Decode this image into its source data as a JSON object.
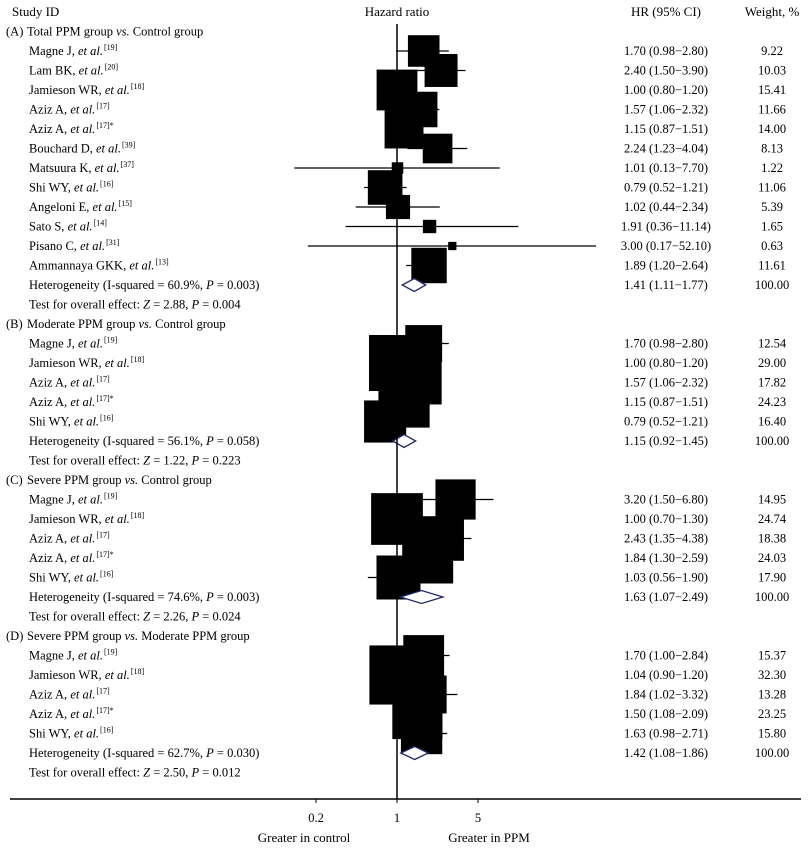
{
  "chart_data": {
    "type": "forest",
    "x_scale": "log",
    "headers": {
      "study": "Study ID",
      "effect": "Hazard ratio",
      "ci": "HR (95% CI)",
      "weight": "Weight, %"
    },
    "x_ticks": [
      {
        "value": 0.2,
        "label": "0.2"
      },
      {
        "value": 1,
        "label": "1"
      },
      {
        "value": 5,
        "label": "5"
      }
    ],
    "footer": {
      "left": "Greater in control",
      "right": "Greater in PPM"
    },
    "groups": [
      {
        "label": "(A)",
        "title": "Total PPM group vs. Control group",
        "studies": [
          {
            "name": "Magne J, et al.",
            "ref": "[19]",
            "hr": 1.7,
            "lo": 0.98,
            "hi": 2.8,
            "ci_text": "1.70 (0.98−2.80)",
            "weight": "9.22"
          },
          {
            "name": "Lam BK, et al.",
            "ref": "[20]",
            "hr": 2.4,
            "lo": 1.5,
            "hi": 3.9,
            "ci_text": "2.40 (1.50−3.90)",
            "weight": "10.03"
          },
          {
            "name": "Jamieson WR, et al.",
            "ref": "[18]",
            "hr": 1.0,
            "lo": 0.8,
            "hi": 1.2,
            "ci_text": "1.00 (0.80−1.20)",
            "weight": "15.41"
          },
          {
            "name": "Aziz A, et al.",
            "ref": "[17]",
            "hr": 1.57,
            "lo": 1.06,
            "hi": 2.32,
            "ci_text": "1.57 (1.06−2.32)",
            "weight": "11.66"
          },
          {
            "name": "Aziz A, et al.",
            "ref": "[17]*",
            "hr": 1.15,
            "lo": 0.87,
            "hi": 1.51,
            "ci_text": "1.15 (0.87−1.51)",
            "weight": "14.00"
          },
          {
            "name": "Bouchard D, et al.",
            "ref": "[39]",
            "hr": 2.24,
            "lo": 1.23,
            "hi": 4.04,
            "ci_text": "2.24 (1.23−4.04)",
            "weight": "8.13"
          },
          {
            "name": "Matsuura K, et al.",
            "ref": "[37]",
            "hr": 1.01,
            "lo": 0.13,
            "hi": 7.7,
            "ci_text": "1.01 (0.13−7.70)",
            "weight": "1.22"
          },
          {
            "name": "Shi WY, et al.",
            "ref": "[16]",
            "hr": 0.79,
            "lo": 0.52,
            "hi": 1.21,
            "ci_text": "0.79 (0.52−1.21)",
            "weight": "11.06"
          },
          {
            "name": "Angeloni E, et al.",
            "ref": "[15]",
            "hr": 1.02,
            "lo": 0.44,
            "hi": 2.34,
            "ci_text": "1.02 (0.44−2.34)",
            "weight": "5.39"
          },
          {
            "name": "Sato S, et al.",
            "ref": "[14]",
            "hr": 1.91,
            "lo": 0.36,
            "hi": 11.14,
            "ci_text": "1.91 (0.36−11.14)",
            "weight": "1.65"
          },
          {
            "name": "Pisano C, et al.",
            "ref": "[31]",
            "hr": 3.0,
            "lo": 0.17,
            "hi": 52.1,
            "ci_text": "3.00 (0.17−52.10)",
            "weight": "0.63"
          },
          {
            "name": "Ammannaya GKK, et al.",
            "ref": "[13]",
            "hr": 1.89,
            "lo": 1.2,
            "hi": 2.64,
            "ci_text": "1.89 (1.20−2.64)",
            "weight": "11.61"
          }
        ],
        "summary": {
          "label": "Heterogeneity (I-squared = 60.9%, P = 0.003)",
          "hr": 1.41,
          "lo": 1.11,
          "hi": 1.77,
          "ci_text": "1.41 (1.11−1.77)",
          "weight": "100.00"
        },
        "test": "Test for overall effect: Z = 2.88, P = 0.004"
      },
      {
        "label": "(B)",
        "title": "Moderate PPM group vs. Control group",
        "studies": [
          {
            "name": "Magne J, et al.",
            "ref": "[19]",
            "hr": 1.7,
            "lo": 0.98,
            "hi": 2.8,
            "ci_text": "1.70 (0.98−2.80)",
            "weight": "12.54"
          },
          {
            "name": "Jamieson WR, et al.",
            "ref": "[18]",
            "hr": 1.0,
            "lo": 0.8,
            "hi": 1.2,
            "ci_text": "1.00 (0.80−1.20)",
            "weight": "29.00"
          },
          {
            "name": "Aziz A, et al.",
            "ref": "[17]",
            "hr": 1.57,
            "lo": 1.06,
            "hi": 2.32,
            "ci_text": "1.57 (1.06−2.32)",
            "weight": "17.82"
          },
          {
            "name": "Aziz A, et al.",
            "ref": "[17]*",
            "hr": 1.15,
            "lo": 0.87,
            "hi": 1.51,
            "ci_text": "1.15 (0.87−1.51)",
            "weight": "24.23"
          },
          {
            "name": "Shi WY, et al.",
            "ref": "[16]",
            "hr": 0.79,
            "lo": 0.52,
            "hi": 1.21,
            "ci_text": "0.79 (0.52−1.21)",
            "weight": "16.40"
          }
        ],
        "summary": {
          "label": "Heterogeneity (I-squared = 56.1%, P = 0.058)",
          "hr": 1.15,
          "lo": 0.92,
          "hi": 1.45,
          "ci_text": "1.15 (0.92−1.45)",
          "weight": "100.00"
        },
        "test": "Test for overall effect: Z = 1.22, P = 0.223"
      },
      {
        "label": "(C)",
        "title": "Severe PPM group vs. Control group",
        "studies": [
          {
            "name": "Magne J, et al.",
            "ref": "[19]",
            "hr": 3.2,
            "lo": 1.5,
            "hi": 6.8,
            "ci_text": "3.20 (1.50−6.80)",
            "weight": "14.95"
          },
          {
            "name": "Jamieson WR, et al.",
            "ref": "[18]",
            "hr": 1.0,
            "lo": 0.7,
            "hi": 1.3,
            "ci_text": "1.00 (0.70−1.30)",
            "weight": "24.74"
          },
          {
            "name": "Aziz A, et al.",
            "ref": "[17]",
            "hr": 2.43,
            "lo": 1.35,
            "hi": 4.38,
            "ci_text": "2.43 (1.35−4.38)",
            "weight": "18.38"
          },
          {
            "name": "Aziz A, et al.",
            "ref": "[17]*",
            "hr": 1.84,
            "lo": 1.3,
            "hi": 2.59,
            "ci_text": "1.84 (1.30−2.59)",
            "weight": "24.03"
          },
          {
            "name": "Shi WY, et al.",
            "ref": "[16]",
            "hr": 1.03,
            "lo": 0.56,
            "hi": 1.9,
            "ci_text": "1.03 (0.56−1.90)",
            "weight": "17.90"
          }
        ],
        "summary": {
          "label": "Heterogeneity (I-squared = 74.6%, P = 0.003)",
          "hr": 1.63,
          "lo": 1.07,
          "hi": 2.49,
          "ci_text": "1.63 (1.07−2.49)",
          "weight": "100.00"
        },
        "test": "Test for overall effect: Z = 2.26, P = 0.024"
      },
      {
        "label": "(D)",
        "title": "Severe PPM group vs. Moderate PPM group",
        "studies": [
          {
            "name": "Magne J, et al.",
            "ref": "[19]",
            "hr": 1.7,
            "lo": 1.0,
            "hi": 2.84,
            "ci_text": "1.70 (1.00−2.84)",
            "weight": "15.37"
          },
          {
            "name": "Jamieson WR, et al.",
            "ref": "[18]",
            "hr": 1.04,
            "lo": 0.9,
            "hi": 1.2,
            "ci_text": "1.04 (0.90−1.20)",
            "weight": "32.30"
          },
          {
            "name": "Aziz A, et al.",
            "ref": "[17]",
            "hr": 1.84,
            "lo": 1.02,
            "hi": 3.32,
            "ci_text": "1.84 (1.02−3.32)",
            "weight": "13.28"
          },
          {
            "name": "Aziz A, et al.",
            "ref": "[17]*",
            "hr": 1.5,
            "lo": 1.08,
            "hi": 2.09,
            "ci_text": "1.50 (1.08−2.09)",
            "weight": "23.25"
          },
          {
            "name": "Shi WY, et al.",
            "ref": "[16]",
            "hr": 1.63,
            "lo": 0.98,
            "hi": 2.71,
            "ci_text": "1.63 (0.98−2.71)",
            "weight": "15.80"
          }
        ],
        "summary": {
          "label": "Heterogeneity (I-squared = 62.7%, P = 0.030)",
          "hr": 1.42,
          "lo": 1.08,
          "hi": 1.86,
          "ci_text": "1.42 (1.08−1.86)",
          "weight": "100.00"
        },
        "test": "Test for overall effect: Z = 2.50, P = 0.012"
      }
    ],
    "colors": {
      "marker": "#000000",
      "summary_diamond": "#1f2a6b"
    }
  }
}
